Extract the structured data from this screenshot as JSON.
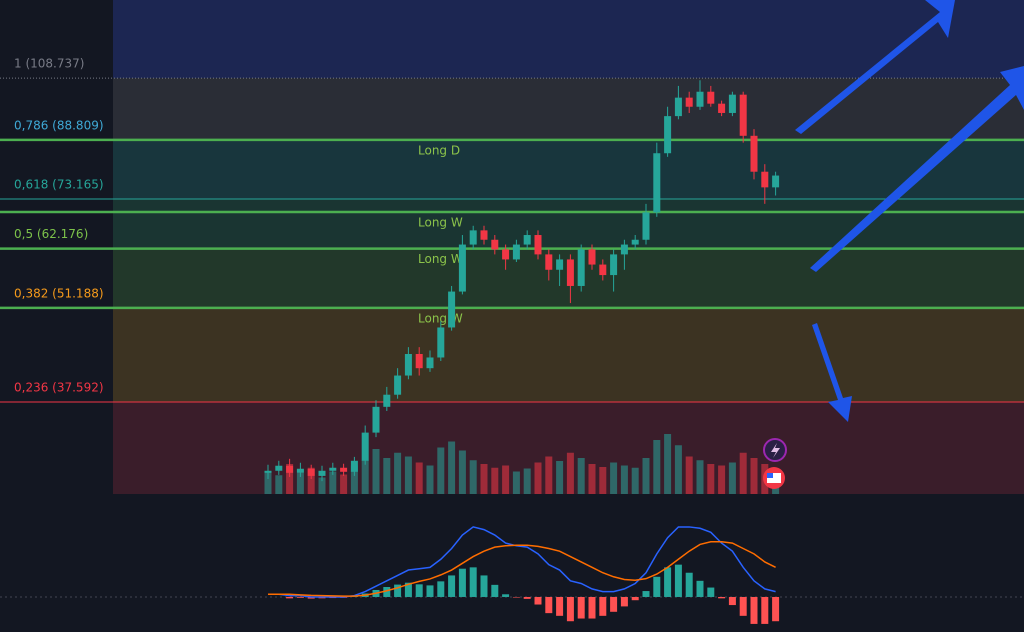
{
  "chart_data": {
    "type": "candlestick",
    "log_scale": true,
    "ylim": [
      27.8,
      140.5
    ],
    "up_color": "#26a69a",
    "down_color": "#f23645",
    "top_zone_color": "#1c2652",
    "fib_levels": [
      {
        "label": "1 (108.737)",
        "price": 108.737,
        "color": "#787b86",
        "zone_color": "#2a2d36"
      },
      {
        "label": "0,786 (88.809)",
        "price": 88.809,
        "color": "#3fa9d6",
        "zone_color": "#18363d"
      },
      {
        "label": "0,618 (73.165)",
        "price": 73.165,
        "color": "#26a69a",
        "zone_color": "#1a3532"
      },
      {
        "label": "0,5 (62.176)",
        "price": 62.176,
        "color": "#7cc24a",
        "zone_color": "#22382a"
      },
      {
        "label": "0,382 (51.188)",
        "price": 51.188,
        "color": "#f59a1b",
        "zone_color": "#3c3322"
      },
      {
        "label": "0,236 (37.592)",
        "price": 37.592,
        "color": "#f23645",
        "zone_color": "#3a1d2a"
      }
    ],
    "positions": [
      {
        "label": "Long D",
        "price": 88.809
      },
      {
        "label": "Long W",
        "price": 70.1
      },
      {
        "label": "Long W",
        "price": 62.176
      },
      {
        "label": "Long W",
        "price": 51.188
      }
    ],
    "position_color": "#4caf50",
    "open": [
      29.8,
      30,
      30.5,
      29.8,
      30.2,
      29.5,
      30,
      30.3,
      29.9,
      31,
      34,
      37,
      38.5,
      41,
      44,
      42,
      43.5,
      48,
      54,
      63,
      66,
      64,
      62,
      60,
      63,
      65,
      61,
      58,
      60,
      55,
      62,
      59,
      57,
      61,
      63,
      64,
      70,
      85,
      96,
      102,
      99,
      104,
      100,
      97,
      103,
      90,
      80,
      76
    ],
    "high": [
      30.6,
      31,
      31.2,
      30.8,
      30.6,
      30.5,
      30.8,
      30.7,
      31.4,
      34.8,
      37.8,
      39.5,
      42,
      45,
      45,
      44.5,
      49,
      55,
      65,
      67,
      67,
      65,
      63,
      64,
      66,
      66,
      62,
      61,
      61,
      63,
      63,
      60,
      62,
      64,
      65,
      72,
      88,
      99,
      106,
      104,
      108,
      106,
      101,
      104,
      104,
      92,
      82,
      80
    ],
    "low": [
      29.2,
      29.6,
      29.4,
      29.4,
      29.2,
      29,
      29.6,
      29.5,
      29.5,
      30.6,
      33.5,
      36.5,
      38,
      40.5,
      41,
      41.5,
      43,
      47.5,
      53.5,
      62,
      63,
      61,
      58,
      59.5,
      62,
      60,
      56,
      55,
      52,
      54,
      58,
      56,
      54,
      58,
      62,
      63,
      69,
      84,
      95,
      97,
      98,
      99,
      96,
      96,
      88,
      78,
      72,
      74
    ],
    "close": [
      30,
      30.5,
      29.8,
      30.2,
      29.5,
      30,
      30.3,
      29.9,
      31,
      34,
      37,
      38.5,
      41,
      44,
      42,
      43.5,
      48,
      54,
      63,
      66,
      64,
      62,
      60,
      63,
      65,
      61,
      58,
      60,
      55,
      62,
      59,
      57,
      61,
      63,
      64,
      70,
      85,
      96,
      102,
      99,
      104,
      100,
      97,
      103,
      90,
      80,
      76,
      79
    ],
    "volume": [
      30,
      25,
      40,
      28,
      35,
      22,
      30,
      26,
      38,
      45,
      60,
      48,
      55,
      50,
      42,
      38,
      62,
      70,
      58,
      45,
      40,
      35,
      38,
      30,
      34,
      42,
      50,
      44,
      55,
      48,
      40,
      36,
      42,
      38,
      35,
      48,
      72,
      80,
      65,
      50,
      45,
      40,
      38,
      42,
      55,
      48,
      40,
      30
    ],
    "macd_ylim": [
      -1.3,
      3.6
    ],
    "macd": {
      "name": "MACD",
      "color": "#2962ff",
      "values": [
        0.1,
        0.1,
        0.05,
        0.05,
        0,
        0,
        0,
        0,
        0.05,
        0.2,
        0.4,
        0.6,
        0.8,
        1.0,
        1.05,
        1.1,
        1.4,
        1.8,
        2.3,
        2.6,
        2.5,
        2.3,
        2.0,
        1.9,
        1.85,
        1.6,
        1.2,
        1.0,
        0.6,
        0.5,
        0.3,
        0.2,
        0.2,
        0.3,
        0.5,
        0.9,
        1.6,
        2.2,
        2.6,
        2.6,
        2.55,
        2.4,
        2.0,
        1.7,
        1.1,
        0.6,
        0.3,
        0.2
      ]
    },
    "signal": {
      "name": "Signal",
      "color": "#ff6d00",
      "values": [
        0.1,
        0.1,
        0.1,
        0.08,
        0.06,
        0.05,
        0.04,
        0.03,
        0.03,
        0.07,
        0.14,
        0.23,
        0.34,
        0.47,
        0.58,
        0.67,
        0.82,
        1.0,
        1.25,
        1.5,
        1.7,
        1.85,
        1.9,
        1.92,
        1.92,
        1.88,
        1.8,
        1.7,
        1.5,
        1.3,
        1.1,
        0.9,
        0.75,
        0.65,
        0.62,
        0.68,
        0.85,
        1.1,
        1.4,
        1.7,
        1.95,
        2.05,
        2.05,
        2.0,
        1.8,
        1.6,
        1.3,
        1.1
      ]
    },
    "histogram": [
      0,
      0,
      -0.05,
      -0.03,
      -0.06,
      -0.05,
      -0.04,
      -0.03,
      0.02,
      0.13,
      0.26,
      0.37,
      0.46,
      0.53,
      0.47,
      0.43,
      0.58,
      0.8,
      1.05,
      1.1,
      0.8,
      0.45,
      0.1,
      -0.02,
      -0.07,
      -0.28,
      -0.6,
      -0.7,
      -0.9,
      -0.8,
      -0.8,
      -0.7,
      -0.55,
      -0.35,
      -0.12,
      0.22,
      0.75,
      1.1,
      1.2,
      0.9,
      0.6,
      0.35,
      -0.05,
      -0.3,
      -0.7,
      -1.0,
      -1.0,
      -0.9
    ]
  }
}
